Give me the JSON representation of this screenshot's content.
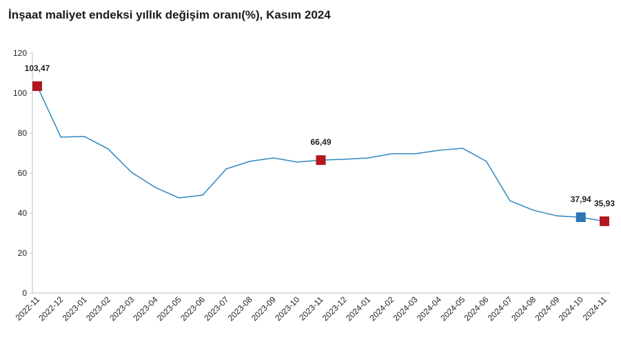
{
  "chart_data": {
    "type": "line",
    "title": "İnşaat maliyet endeksi yıllık değişim oranı(%), Kasım 2024",
    "categories": [
      "2022-11",
      "2022-12",
      "2023-01",
      "2023-02",
      "2023-03",
      "2023-04",
      "2023-05",
      "2023-06",
      "2023-07",
      "2023-08",
      "2023-09",
      "2023-10",
      "2023-11",
      "2023-12",
      "2024-01",
      "2024-02",
      "2024-03",
      "2024-04",
      "2024-05",
      "2024-06",
      "2024-07",
      "2024-08",
      "2024-09",
      "2024-10",
      "2024-11"
    ],
    "values": [
      103.47,
      78.0,
      78.3,
      72.1,
      60.3,
      52.8,
      47.6,
      49.0,
      62.1,
      65.9,
      67.6,
      65.5,
      66.49,
      66.9,
      67.6,
      69.7,
      69.7,
      71.4,
      72.4,
      65.9,
      46.2,
      41.4,
      38.6,
      37.94,
      35.93
    ],
    "value_labels": [
      "103,47",
      null,
      null,
      null,
      null,
      null,
      null,
      null,
      null,
      null,
      null,
      null,
      "66,49",
      null,
      null,
      null,
      null,
      null,
      null,
      null,
      null,
      null,
      null,
      "37,94",
      "35,93"
    ],
    "marker_colors": [
      "#b0171f",
      null,
      null,
      null,
      null,
      null,
      null,
      null,
      null,
      null,
      null,
      null,
      "#b0171f",
      null,
      null,
      null,
      null,
      null,
      null,
      null,
      null,
      null,
      null,
      "#2e75b6",
      "#b0171f"
    ],
    "color": "#2e86c1",
    "ylim": [
      0,
      120
    ],
    "yticks": [
      0,
      20,
      40,
      60,
      80,
      100,
      120
    ],
    "grid": false
  }
}
